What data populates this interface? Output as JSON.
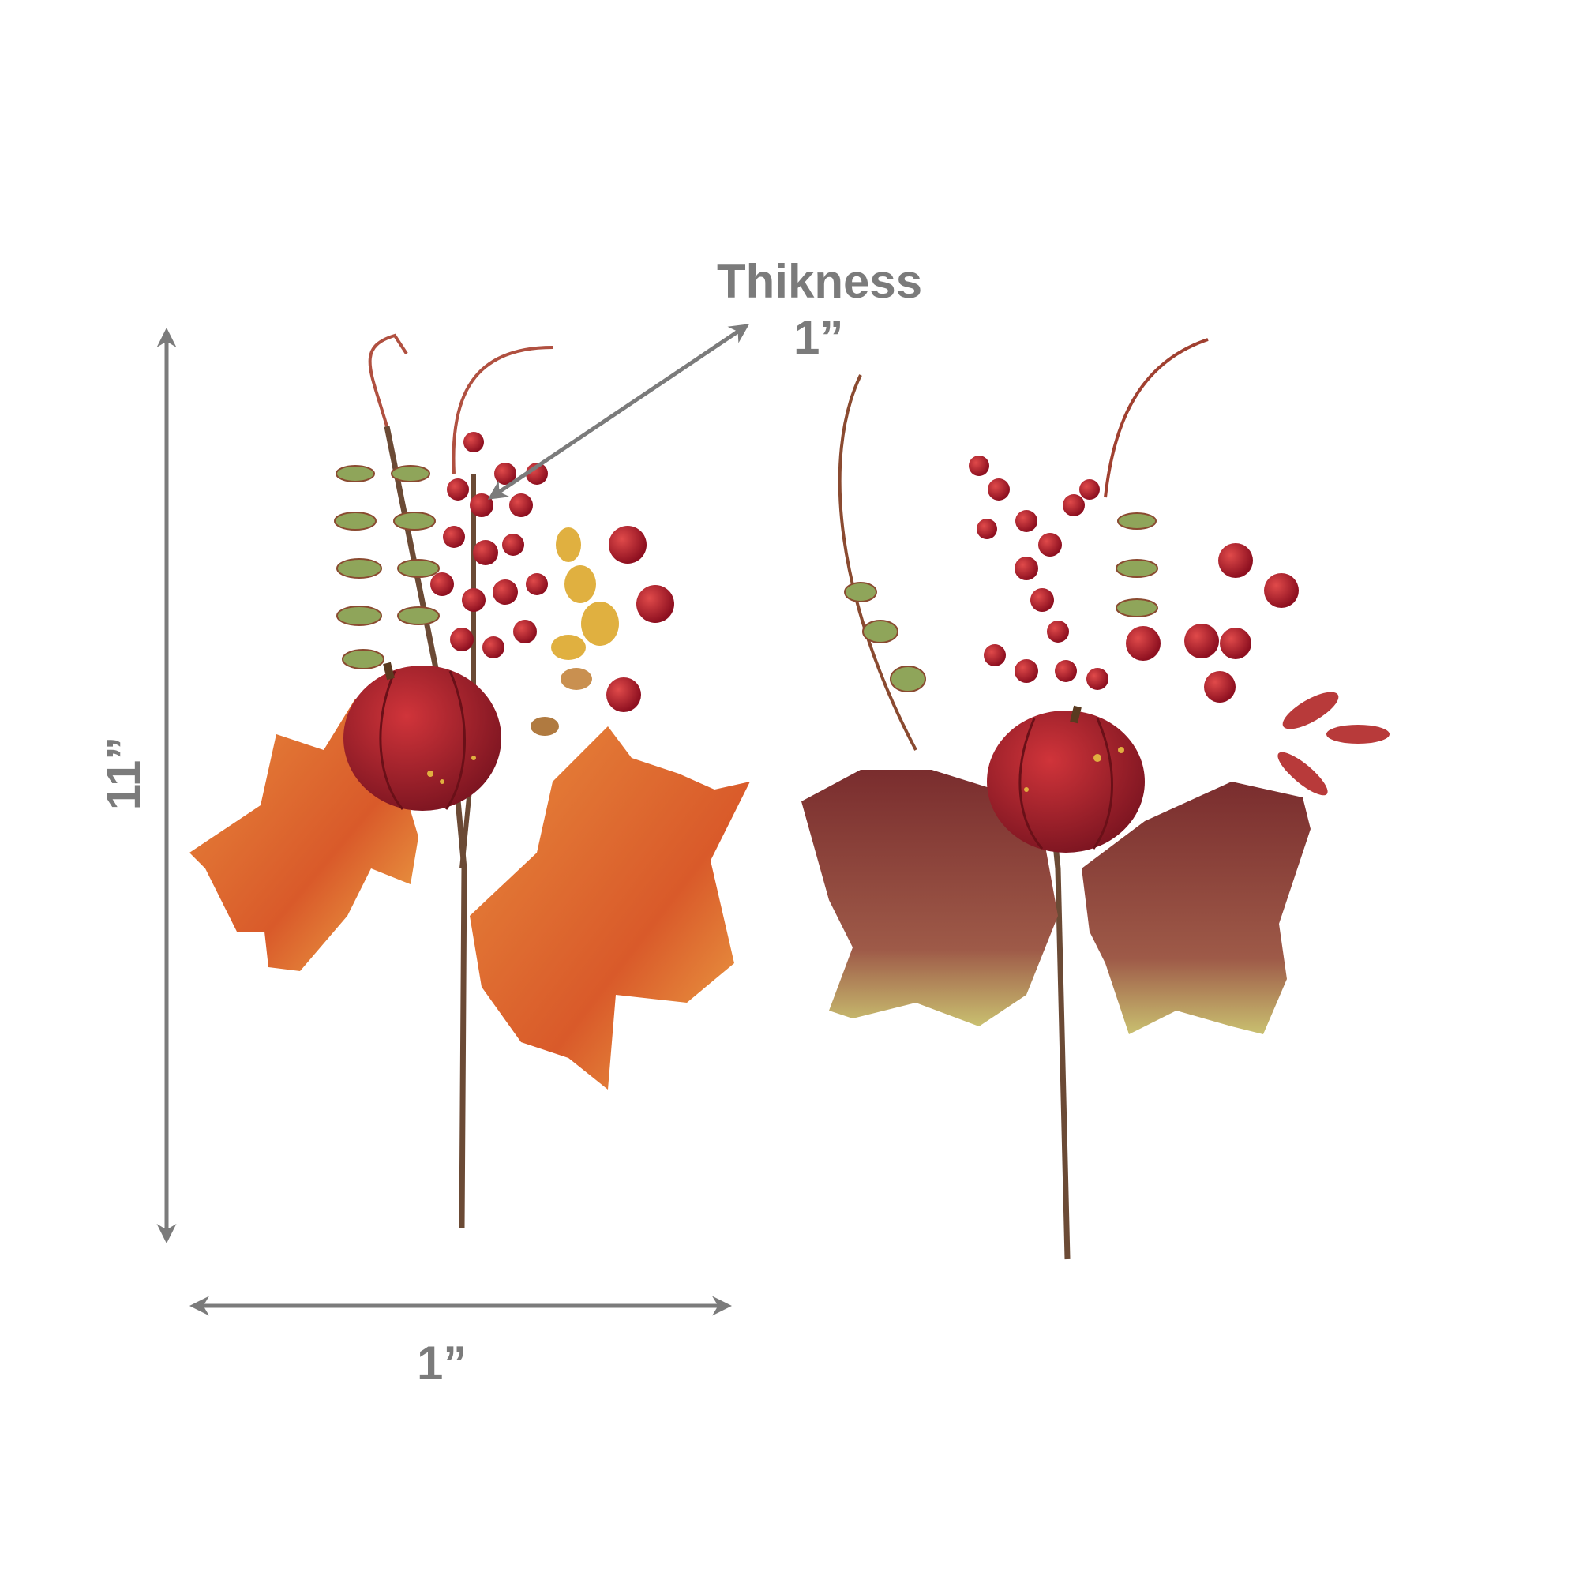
{
  "annotations": {
    "thickness_label": "Thikness",
    "thickness_value": "1”",
    "height_value": "11”",
    "width_value": "1”"
  },
  "colors": {
    "annotation_gray": "#7b7b7b",
    "berry_red": "#b81e2a",
    "maple_orange": "#e0692c",
    "burgundy_leaf": "#8e3b36",
    "fern_green": "#7f9a4a"
  }
}
